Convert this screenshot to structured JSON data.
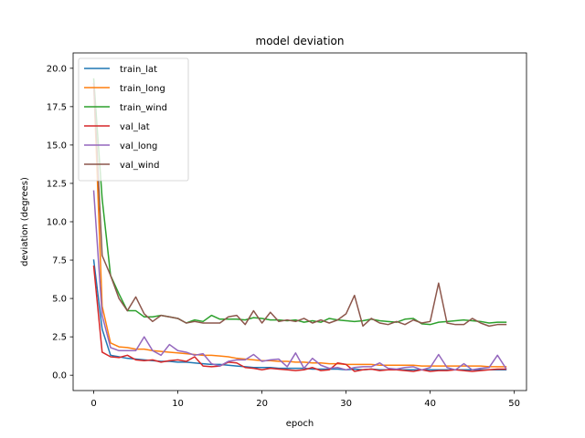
{
  "chart_data": {
    "type": "line",
    "title": "model deviation",
    "xlabel": "epoch",
    "ylabel": "deviation (degrees)",
    "xlim": [
      -2.45,
      51.45
    ],
    "ylim": [
      -1.0,
      21.0
    ],
    "xticks": [
      0,
      10,
      20,
      30,
      40,
      50
    ],
    "xtick_labels": [
      "0",
      "10",
      "20",
      "30",
      "40",
      "50"
    ],
    "yticks": [
      0,
      2.5,
      5,
      7.5,
      10,
      12.5,
      15,
      17.5,
      20
    ],
    "ytick_labels": [
      "0.0",
      "2.5",
      "5.0",
      "7.5",
      "10.0",
      "12.5",
      "15.0",
      "17.5",
      "20.0"
    ],
    "grid": false,
    "legend_position": "top-left",
    "x": [
      0,
      1,
      2,
      3,
      4,
      5,
      6,
      7,
      8,
      9,
      10,
      11,
      12,
      13,
      14,
      15,
      16,
      17,
      18,
      19,
      20,
      21,
      22,
      23,
      24,
      25,
      26,
      27,
      28,
      29,
      30,
      31,
      32,
      33,
      34,
      35,
      36,
      37,
      38,
      39,
      40,
      41,
      42,
      43,
      44,
      45,
      46,
      47,
      48,
      49
    ],
    "series": [
      {
        "name": "train_lat",
        "color": "#1f77b4",
        "values": [
          7.5,
          3.0,
          1.3,
          1.2,
          1.1,
          1.05,
          1.0,
          0.95,
          0.9,
          0.9,
          0.85,
          0.85,
          0.8,
          0.75,
          0.7,
          0.7,
          0.65,
          0.6,
          0.55,
          0.5,
          0.5,
          0.5,
          0.45,
          0.45,
          0.45,
          0.45,
          0.4,
          0.4,
          0.4,
          0.4,
          0.35,
          0.4,
          0.35,
          0.4,
          0.35,
          0.35,
          0.35,
          0.35,
          0.35,
          0.35,
          0.35,
          0.35,
          0.35,
          0.35,
          0.35,
          0.35,
          0.35,
          0.35,
          0.35,
          0.35
        ]
      },
      {
        "name": "train_long",
        "color": "#ff7f0e",
        "values": [
          19.0,
          4.5,
          2.1,
          1.85,
          1.8,
          1.7,
          1.7,
          1.6,
          1.55,
          1.5,
          1.45,
          1.4,
          1.35,
          1.3,
          1.3,
          1.25,
          1.2,
          1.1,
          1.05,
          1.0,
          0.95,
          0.95,
          0.9,
          0.9,
          0.85,
          0.85,
          0.8,
          0.8,
          0.75,
          0.75,
          0.7,
          0.7,
          0.7,
          0.7,
          0.65,
          0.65,
          0.65,
          0.65,
          0.65,
          0.6,
          0.6,
          0.6,
          0.6,
          0.6,
          0.6,
          0.6,
          0.6,
          0.55,
          0.55,
          0.55
        ]
      },
      {
        "name": "train_wind",
        "color": "#2ca02c",
        "values": [
          19.3,
          11.5,
          6.5,
          5.3,
          4.2,
          4.2,
          3.8,
          3.8,
          3.9,
          3.8,
          3.7,
          3.4,
          3.6,
          3.5,
          3.9,
          3.65,
          3.65,
          3.65,
          3.6,
          3.75,
          3.7,
          3.6,
          3.6,
          3.55,
          3.6,
          3.45,
          3.55,
          3.45,
          3.7,
          3.6,
          3.55,
          3.5,
          3.55,
          3.65,
          3.55,
          3.5,
          3.45,
          3.65,
          3.7,
          3.35,
          3.3,
          3.45,
          3.5,
          3.55,
          3.6,
          3.55,
          3.5,
          3.4,
          3.45,
          3.45
        ]
      },
      {
        "name": "val_lat",
        "color": "#d62728",
        "values": [
          7.1,
          1.5,
          1.2,
          1.15,
          1.3,
          1.0,
          0.95,
          1.0,
          0.85,
          0.95,
          1.0,
          0.9,
          1.2,
          0.6,
          0.55,
          0.6,
          0.85,
          0.8,
          0.5,
          0.45,
          0.35,
          0.45,
          0.4,
          0.35,
          0.3,
          0.35,
          0.5,
          0.3,
          0.35,
          0.8,
          0.7,
          0.25,
          0.35,
          0.4,
          0.3,
          0.35,
          0.35,
          0.3,
          0.25,
          0.35,
          0.25,
          0.3,
          0.3,
          0.35,
          0.3,
          0.25,
          0.3,
          0.35,
          0.4,
          0.4
        ]
      },
      {
        "name": "val_long",
        "color": "#9467bd",
        "values": [
          12.0,
          3.9,
          1.8,
          1.6,
          1.6,
          1.6,
          2.5,
          1.6,
          1.3,
          2.0,
          1.6,
          1.5,
          1.3,
          1.4,
          0.75,
          0.6,
          0.9,
          1.0,
          1.0,
          1.35,
          0.9,
          1.0,
          1.05,
          0.55,
          1.45,
          0.45,
          1.1,
          0.65,
          0.45,
          0.5,
          0.35,
          0.5,
          0.55,
          0.55,
          0.8,
          0.45,
          0.4,
          0.5,
          0.55,
          0.35,
          0.5,
          1.35,
          0.5,
          0.35,
          0.75,
          0.35,
          0.45,
          0.5,
          1.3,
          0.45
        ]
      },
      {
        "name": "val_wind",
        "color": "#8c564b",
        "values": [
          19.0,
          7.8,
          6.5,
          5.0,
          4.2,
          5.1,
          4.0,
          3.5,
          3.9,
          3.8,
          3.7,
          3.4,
          3.5,
          3.4,
          3.4,
          3.4,
          3.8,
          3.9,
          3.3,
          4.2,
          3.4,
          4.1,
          3.5,
          3.6,
          3.5,
          3.7,
          3.4,
          3.6,
          3.4,
          3.6,
          4.0,
          5.2,
          3.2,
          3.7,
          3.4,
          3.3,
          3.5,
          3.3,
          3.6,
          3.4,
          3.5,
          6.0,
          3.4,
          3.3,
          3.3,
          3.7,
          3.4,
          3.2,
          3.3,
          3.3
        ]
      }
    ]
  }
}
